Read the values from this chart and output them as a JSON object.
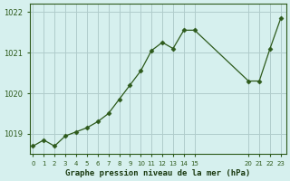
{
  "x_values": [
    0,
    1,
    2,
    3,
    4,
    5,
    6,
    7,
    8,
    9,
    10,
    11,
    12,
    13,
    14,
    15,
    20,
    21,
    22,
    23
  ],
  "y_values": [
    1018.7,
    1018.85,
    1018.7,
    1018.95,
    1019.05,
    1019.15,
    1019.3,
    1019.5,
    1019.85,
    1020.2,
    1020.55,
    1021.05,
    1021.25,
    1021.1,
    1021.55,
    1021.55,
    1020.3,
    1020.3,
    1021.1,
    1021.85
  ],
  "x_tick_positions": [
    0,
    1,
    2,
    3,
    4,
    5,
    6,
    7,
    8,
    9,
    10,
    11,
    12,
    13,
    14,
    15,
    20,
    21,
    22,
    23
  ],
  "x_tick_labels": [
    "0",
    "1",
    "2",
    "3",
    "4",
    "5",
    "6",
    "7",
    "8",
    "9",
    "10",
    "11",
    "12",
    "13",
    "14",
    "15",
    "20",
    "21",
    "22",
    "23"
  ],
  "ylim": [
    1018.5,
    1022.2
  ],
  "xlim": [
    -0.3,
    23.5
  ],
  "yticks": [
    1019,
    1020,
    1021,
    1022
  ],
  "xlabel": "Graphe pression niveau de la mer (hPa)",
  "line_color": "#2d5a1b",
  "marker_color": "#2d5a1b",
  "bg_color": "#d6f0ee",
  "grid_color": "#b0cccb",
  "tick_label_color": "#2d5a1b",
  "xlabel_color": "#1a3a10"
}
